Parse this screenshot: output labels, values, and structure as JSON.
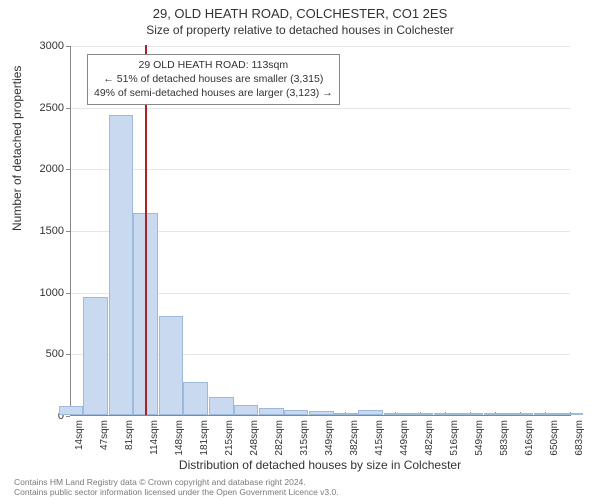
{
  "title": "29, OLD HEATH ROAD, COLCHESTER, CO1 2ES",
  "subtitle": "Size of property relative to detached houses in Colchester",
  "xlabel": "Distribution of detached houses by size in Colchester",
  "ylabel": "Number of detached properties",
  "attribution": {
    "line1": "Contains HM Land Registry data © Crown copyright and database right 2024.",
    "line2": "Contains public sector information licensed under the Open Government Licence v3.0."
  },
  "annotation": {
    "line1": "29 OLD HEATH ROAD: 113sqm",
    "line2": "← 51% of detached houses are smaller (3,315)",
    "line3": "49% of semi-detached houses are larger (3,123) →"
  },
  "chart": {
    "type": "histogram",
    "background_color": "#ffffff",
    "grid_color": "#e6e6e6",
    "axis_color": "#888888",
    "bar_fill": "#c9daf0",
    "bar_border": "#9db9dc",
    "marker_color": "#b02020",
    "marker_x": 113,
    "ylim": [
      0,
      3000
    ],
    "ytick_step": 500,
    "bar_width_sqm": 33,
    "font_family": "Arial",
    "title_fontsize": 13,
    "subtitle_fontsize": 12,
    "axis_label_fontsize": 12,
    "tick_fontsize": 11,
    "x_tick_fontsize": 10,
    "annotation_fontsize": 10.5,
    "attribution_fontsize": 8.5,
    "attribution_color": "#7a7a7a",
    "x_ticks": [
      "14sqm",
      "47sqm",
      "81sqm",
      "114sqm",
      "148sqm",
      "181sqm",
      "215sqm",
      "248sqm",
      "282sqm",
      "315sqm",
      "349sqm",
      "382sqm",
      "415sqm",
      "449sqm",
      "482sqm",
      "516sqm",
      "549sqm",
      "583sqm",
      "616sqm",
      "650sqm",
      "683sqm"
    ],
    "y_ticks": [
      0,
      500,
      1000,
      1500,
      2000,
      2500,
      3000
    ],
    "bars": [
      {
        "x": 14,
        "value": 70
      },
      {
        "x": 47,
        "value": 960
      },
      {
        "x": 81,
        "value": 2430
      },
      {
        "x": 114,
        "value": 1640
      },
      {
        "x": 148,
        "value": 800
      },
      {
        "x": 181,
        "value": 270
      },
      {
        "x": 215,
        "value": 150
      },
      {
        "x": 248,
        "value": 80
      },
      {
        "x": 282,
        "value": 60
      },
      {
        "x": 315,
        "value": 40
      },
      {
        "x": 349,
        "value": 30
      },
      {
        "x": 382,
        "value": 10
      },
      {
        "x": 415,
        "value": 40
      },
      {
        "x": 449,
        "value": 10
      },
      {
        "x": 482,
        "value": 8
      },
      {
        "x": 516,
        "value": 5
      },
      {
        "x": 549,
        "value": 5
      },
      {
        "x": 583,
        "value": 2
      },
      {
        "x": 616,
        "value": 2
      },
      {
        "x": 650,
        "value": 2
      },
      {
        "x": 683,
        "value": 2
      }
    ]
  }
}
